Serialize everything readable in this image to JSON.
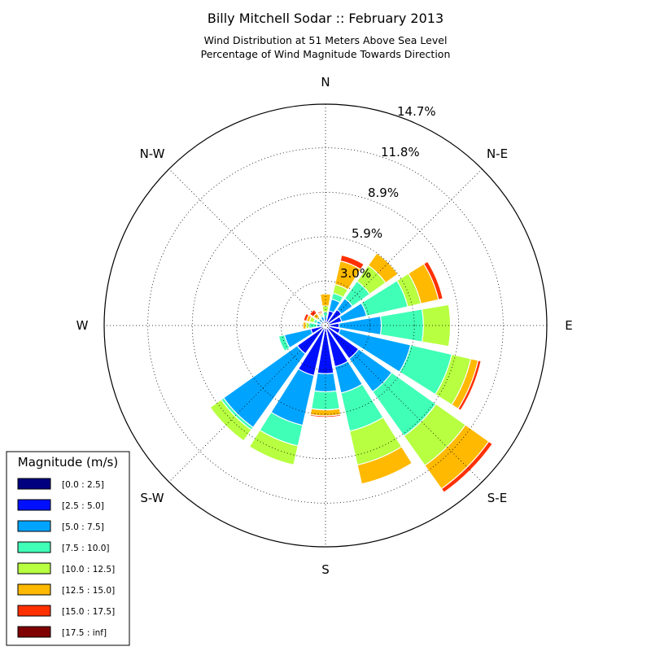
{
  "chart_data": {
    "type": "windrose",
    "title": "Billy Mitchell Sodar :: February 2013",
    "subtitle_lines": [
      "Wind Distribution at 51 Meters Above Sea Level",
      "Percentage of Wind Magnitude Towards Direction"
    ],
    "directions": [
      "N",
      "NNE",
      "NE",
      "ENE",
      "E",
      "ESE",
      "SE",
      "SSE",
      "S",
      "SSW",
      "SW",
      "WSW",
      "W",
      "WNW",
      "NW",
      "NNW"
    ],
    "direction_labels": [
      "N",
      "N-E",
      "E",
      "S-E",
      "S",
      "S-W",
      "W",
      "N-W"
    ],
    "radial_tick_labels": [
      "3.0%",
      "5.9%",
      "8.9%",
      "11.8%",
      "14.7%"
    ],
    "radial_ticks": [
      2.95,
      5.9,
      8.85,
      11.8
    ],
    "rmax": 14.7,
    "value_unit": "percent (cumulative)",
    "series": [
      {
        "name": "[0.0 : 2.5]",
        "color": "#00007f",
        "values": [
          0.12,
          0.12,
          0.12,
          0.12,
          0.12,
          0.12,
          0.12,
          0.12,
          0.12,
          0.12,
          0.12,
          0.12,
          0.1,
          0.1,
          0.1,
          0.1
        ]
      },
      {
        "name": "[2.5 : 5.0]",
        "color": "#0010ff",
        "values": [
          0.4,
          1.0,
          1.3,
          1.1,
          0.9,
          1.0,
          2.7,
          2.8,
          3.2,
          3.4,
          2.3,
          1.0,
          0.3,
          0.3,
          0.3,
          0.3
        ]
      },
      {
        "name": "[5.0 : 7.5]",
        "color": "#00a4ff",
        "values": [
          0.6,
          1.8,
          2.2,
          2.8,
          3.7,
          5.8,
          5.4,
          4.6,
          4.4,
          6.8,
          8.3,
          2.8,
          0.6,
          0.6,
          0.5,
          0.6
        ]
      },
      {
        "name": "[7.5 : 10.0]",
        "color": "#40ffb7",
        "values": [
          0.9,
          2.2,
          3.6,
          5.6,
          6.5,
          8.6,
          9.0,
          7.2,
          5.6,
          8.2,
          8.5,
          3.2,
          1.1,
          0.8,
          0.6,
          0.7
        ]
      },
      {
        "name": "[10.0 : 12.5]",
        "color": "#b7ff40",
        "values": [
          1.3,
          2.8,
          4.9,
          6.5,
          8.3,
          9.9,
          11.4,
          9.5,
          5.6,
          9.5,
          9.4,
          3.2,
          1.3,
          1.1,
          0.7,
          0.8
        ]
      },
      {
        "name": "[12.5 : 15.0]",
        "color": "#ffb900",
        "values": [
          2.1,
          4.4,
          5.9,
          7.7,
          8.3,
          10.4,
          13.3,
          10.8,
          6.0,
          9.5,
          9.4,
          3.2,
          1.5,
          1.3,
          1.0,
          0.9
        ]
      },
      {
        "name": "[15.0 : 17.5]",
        "color": "#ff3000",
        "values": [
          2.1,
          4.8,
          5.9,
          8.0,
          8.3,
          10.6,
          13.6,
          10.8,
          6.1,
          9.5,
          9.4,
          3.2,
          1.5,
          1.5,
          1.3,
          1.0
        ]
      },
      {
        "name": "[17.5 : inf]",
        "color": "#7f0000",
        "values": [
          2.1,
          4.8,
          5.9,
          8.0,
          8.3,
          10.6,
          13.6,
          10.8,
          6.1,
          9.5,
          9.4,
          3.2,
          1.5,
          1.5,
          1.3,
          1.0
        ]
      }
    ],
    "legend_title": "Magnitude (m/s)",
    "legend_position": "bottom-left",
    "grid": true
  }
}
